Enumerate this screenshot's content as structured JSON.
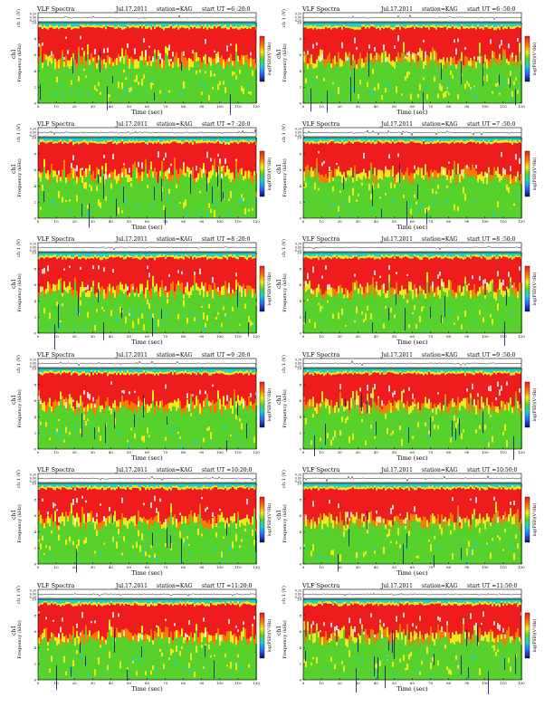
{
  "page_title": "VLF Spectra",
  "colors": {
    "red": "#ee1c1c",
    "orange": "#ff7a00",
    "yellow": "#f1ea1a",
    "green": "#57d12c",
    "cyan": "#19d3cf",
    "blue": "#2b6cff",
    "navy": "#07107a",
    "white": "#ffffff",
    "trace": "#000000"
  },
  "chart_data": [
    {
      "type": "heatmap",
      "title": "VLF Spectra",
      "date": "Jul.17.2011",
      "station": "station=KAG",
      "start_ut": "start  UT  =6 :20:0",
      "ylabel_top": "ch 1 (V)",
      "ylabel_spec": "Frequency  (kHz)",
      "channel_label": "ch1",
      "xlabel": "Time  (sec)",
      "colorbar_label": "log(PSD)(V²/Hz)",
      "x_ticks": [
        "0",
        "10",
        "20",
        "30",
        "40",
        "50",
        "60",
        "70",
        "80",
        "90",
        "100",
        "110",
        "120"
      ],
      "y_ticks_spec": [
        "0",
        "2",
        "4",
        "6",
        "8",
        "10"
      ],
      "y_ticks_top": [
        "0.20",
        "0.00",
        "-0.20"
      ],
      "xlim": [
        0,
        120
      ],
      "ylim": [
        0,
        10
      ]
    },
    {
      "type": "heatmap",
      "title": "VLF Spectra",
      "date": "Jul.17.2011",
      "station": "station=KAG",
      "start_ut": "start  UT  =6 :50:0",
      "ylabel_top": "ch 1 (V)",
      "ylabel_spec": "Frequency  (kHz)",
      "channel_label": "ch1",
      "xlabel": "Time  (sec)",
      "colorbar_label": "log(PSD)(V²/Hz)",
      "x_ticks": [
        "0",
        "10",
        "20",
        "30",
        "40",
        "50",
        "60",
        "70",
        "80",
        "90",
        "100",
        "110",
        "120"
      ],
      "y_ticks_spec": [
        "0",
        "2",
        "4",
        "6",
        "8",
        "10"
      ],
      "y_ticks_top": [
        "0.20",
        "0.00",
        "-0.20"
      ],
      "xlim": [
        0,
        120
      ],
      "ylim": [
        0,
        10
      ]
    },
    {
      "type": "heatmap",
      "title": "VLF Spectra",
      "date": "Jul.17.2011",
      "station": "station=KAG",
      "start_ut": "start  UT  =7 :20:0",
      "ylabel_top": "ch 1 (V)",
      "ylabel_spec": "Frequency  (kHz)",
      "channel_label": "ch1",
      "xlabel": "Time  (sec)",
      "colorbar_label": "log(PSD)(V²/Hz)",
      "x_ticks": [
        "0",
        "10",
        "20",
        "30",
        "40",
        "50",
        "60",
        "70",
        "80",
        "90",
        "100",
        "110",
        "120"
      ],
      "y_ticks_spec": [
        "0",
        "2",
        "4",
        "6",
        "8",
        "10"
      ],
      "y_ticks_top": [
        "0.20",
        "0.00",
        "-0.20"
      ],
      "xlim": [
        0,
        120
      ],
      "ylim": [
        0,
        10
      ]
    },
    {
      "type": "heatmap",
      "title": "VLF Spectra",
      "date": "Jul.17.2011",
      "station": "station=KAG",
      "start_ut": "start  UT  =7 :50:0",
      "ylabel_top": "ch 1 (V)",
      "ylabel_spec": "Frequency  (kHz)",
      "channel_label": "ch1",
      "xlabel": "Time  (sec)",
      "colorbar_label": "log(PSD)(V²/Hz)",
      "x_ticks": [
        "0",
        "10",
        "20",
        "30",
        "40",
        "50",
        "60",
        "70",
        "80",
        "90",
        "100",
        "110",
        "120"
      ],
      "y_ticks_spec": [
        "0",
        "2",
        "4",
        "6",
        "8",
        "10"
      ],
      "y_ticks_top": [
        "0.20",
        "0.00",
        "-0.20"
      ],
      "xlim": [
        0,
        120
      ],
      "ylim": [
        0,
        10
      ]
    },
    {
      "type": "heatmap",
      "title": "VLF Spectra",
      "date": "Jul.17.2011",
      "station": "station=KAG",
      "start_ut": "start  UT  =8 :20:0",
      "ylabel_top": "ch 1 (V)",
      "ylabel_spec": "Frequency  (kHz)",
      "channel_label": "ch1",
      "xlabel": "Time  (sec)",
      "colorbar_label": "log(PSD)(V²/Hz)",
      "x_ticks": [
        "0",
        "10",
        "20",
        "30",
        "40",
        "50",
        "60",
        "70",
        "80",
        "90",
        "100",
        "110",
        "120"
      ],
      "y_ticks_spec": [
        "0",
        "2",
        "4",
        "6",
        "8",
        "10"
      ],
      "y_ticks_top": [
        "0.20",
        "0.00",
        "-0.20"
      ],
      "xlim": [
        0,
        120
      ],
      "ylim": [
        0,
        10
      ]
    },
    {
      "type": "heatmap",
      "title": "VLF Spectra",
      "date": "Jul.17.2011",
      "station": "station=KAG",
      "start_ut": "start  UT  =8 :50:0",
      "ylabel_top": "ch 1 (V)",
      "ylabel_spec": "Frequency  (kHz)",
      "channel_label": "ch1",
      "xlabel": "Time  (sec)",
      "colorbar_label": "log(PSD)(V²/Hz)",
      "x_ticks": [
        "0",
        "10",
        "20",
        "30",
        "40",
        "50",
        "60",
        "70",
        "80",
        "90",
        "100",
        "110",
        "120"
      ],
      "y_ticks_spec": [
        "0",
        "2",
        "4",
        "6",
        "8",
        "10"
      ],
      "y_ticks_top": [
        "0.20",
        "0.00",
        "-0.20"
      ],
      "xlim": [
        0,
        120
      ],
      "ylim": [
        0,
        10
      ]
    },
    {
      "type": "heatmap",
      "title": "VLF Spectra",
      "date": "Jul.17.2011",
      "station": "station=KAG",
      "start_ut": "start  UT  =9 :20:0",
      "ylabel_top": "ch 1 (V)",
      "ylabel_spec": "Frequency  (kHz)",
      "channel_label": "ch1",
      "xlabel": "Time  (sec)",
      "colorbar_label": "log(PSD)(V²/Hz)",
      "x_ticks": [
        "0",
        "10",
        "20",
        "30",
        "40",
        "50",
        "60",
        "70",
        "80",
        "90",
        "100",
        "110",
        "120"
      ],
      "y_ticks_spec": [
        "0",
        "2",
        "4",
        "6",
        "8",
        "10"
      ],
      "y_ticks_top": [
        "0.20",
        "0.00",
        "-0.20"
      ],
      "xlim": [
        0,
        120
      ],
      "ylim": [
        0,
        10
      ]
    },
    {
      "type": "heatmap",
      "title": "VLF Spectra",
      "date": "Jul.17.2011",
      "station": "station=KAG",
      "start_ut": "start  UT  =9 :50:0",
      "ylabel_top": "ch 1 (V)",
      "ylabel_spec": "Frequency  (kHz)",
      "channel_label": "ch1",
      "xlabel": "Time  (sec)",
      "colorbar_label": "log(PSD)(V²/Hz)",
      "x_ticks": [
        "0",
        "10",
        "20",
        "30",
        "40",
        "50",
        "60",
        "70",
        "80",
        "90",
        "100",
        "110",
        "120"
      ],
      "y_ticks_spec": [
        "0",
        "2",
        "4",
        "6",
        "8",
        "10"
      ],
      "y_ticks_top": [
        "0.20",
        "0.00",
        "-0.20"
      ],
      "xlim": [
        0,
        120
      ],
      "ylim": [
        0,
        10
      ]
    },
    {
      "type": "heatmap",
      "title": "VLF Spectra",
      "date": "Jul.17.2011",
      "station": "station=KAG",
      "start_ut": "start  UT  =10:20:0",
      "ylabel_top": "ch 1 (V)",
      "ylabel_spec": "Frequency  (kHz)",
      "channel_label": "ch1",
      "xlabel": "Time  (sec)",
      "colorbar_label": "log(PSD)(V²/Hz)",
      "x_ticks": [
        "0",
        "10",
        "20",
        "30",
        "40",
        "50",
        "60",
        "70",
        "80",
        "90",
        "100",
        "110",
        "120"
      ],
      "y_ticks_spec": [
        "0",
        "2",
        "4",
        "6",
        "8",
        "10"
      ],
      "y_ticks_top": [
        "0.20",
        "0.00",
        "-0.20"
      ],
      "xlim": [
        0,
        120
      ],
      "ylim": [
        0,
        10
      ]
    },
    {
      "type": "heatmap",
      "title": "VLF Spectra",
      "date": "Jul.17.2011",
      "station": "station=KAG",
      "start_ut": "start  UT  =10:50:0",
      "ylabel_top": "ch 1 (V)",
      "ylabel_spec": "Frequency  (kHz)",
      "channel_label": "ch1",
      "xlabel": "Time  (sec)",
      "colorbar_label": "log(PSD)(V²/Hz)",
      "x_ticks": [
        "0",
        "10",
        "20",
        "30",
        "40",
        "50",
        "60",
        "70",
        "80",
        "90",
        "100",
        "110",
        "120"
      ],
      "y_ticks_spec": [
        "0",
        "2",
        "4",
        "6",
        "8",
        "10"
      ],
      "y_ticks_top": [
        "0.20",
        "0.00",
        "-0.20"
      ],
      "xlim": [
        0,
        120
      ],
      "ylim": [
        0,
        10
      ]
    },
    {
      "type": "heatmap",
      "title": "VLF Spectra",
      "date": "Jul.17.2011",
      "station": "station=KAG",
      "start_ut": "start  UT  =11:20:0",
      "ylabel_top": "ch 1 (V)",
      "ylabel_spec": "Frequency  (kHz)",
      "channel_label": "ch1",
      "xlabel": "Time  (sec)",
      "colorbar_label": "log(PSD)(V²/Hz)",
      "x_ticks": [
        "0",
        "10",
        "20",
        "30",
        "40",
        "50",
        "60",
        "70",
        "80",
        "90",
        "100",
        "110",
        "120"
      ],
      "y_ticks_spec": [
        "0",
        "2",
        "4",
        "6",
        "8",
        "10"
      ],
      "y_ticks_top": [
        "0.20",
        "0.00",
        "-0.20"
      ],
      "xlim": [
        0,
        120
      ],
      "ylim": [
        0,
        10
      ]
    },
    {
      "type": "heatmap",
      "title": "VLF Spectra",
      "date": "Jul.17.2011",
      "station": "station=KAG",
      "start_ut": "start  UT  =11:50:0",
      "ylabel_top": "ch 1 (V)",
      "ylabel_spec": "Frequency  (kHz)",
      "channel_label": "ch1",
      "xlabel": "Time  (sec)",
      "colorbar_label": "log(PSD)(V²/Hz)",
      "x_ticks": [
        "0",
        "10",
        "20",
        "30",
        "40",
        "50",
        "60",
        "70",
        "80",
        "90",
        "100",
        "110",
        "120"
      ],
      "y_ticks_spec": [
        "0",
        "2",
        "4",
        "6",
        "8",
        "10"
      ],
      "y_ticks_top": [
        "0.20",
        "0.00",
        "-0.20"
      ],
      "xlim": [
        0,
        120
      ],
      "ylim": [
        0,
        10
      ]
    }
  ]
}
